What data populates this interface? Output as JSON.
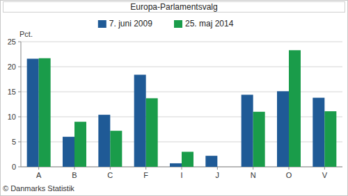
{
  "chart_data": {
    "type": "bar",
    "title": "Europa-Parlamentsvalg",
    "y_label": "Pct.",
    "source": "© Danmarks Statistik",
    "categories": [
      "A",
      "B",
      "C",
      "F",
      "I",
      "J",
      "N",
      "O",
      "V"
    ],
    "series": [
      {
        "name": "7. juni 2009",
        "color": "#1f5a96",
        "values": [
          21.6,
          6.0,
          10.4,
          18.4,
          0.7,
          2.2,
          14.4,
          15.1,
          13.8
        ]
      },
      {
        "name": "25. maj 2014",
        "color": "#1a9c4a",
        "values": [
          21.7,
          9.0,
          7.2,
          13.7,
          3.0,
          null,
          11.0,
          23.3,
          11.1
        ]
      }
    ],
    "ylim": [
      0,
      25
    ],
    "yticks": [
      0,
      5,
      10,
      15,
      20,
      25
    ],
    "grid": true,
    "legend": "top"
  }
}
